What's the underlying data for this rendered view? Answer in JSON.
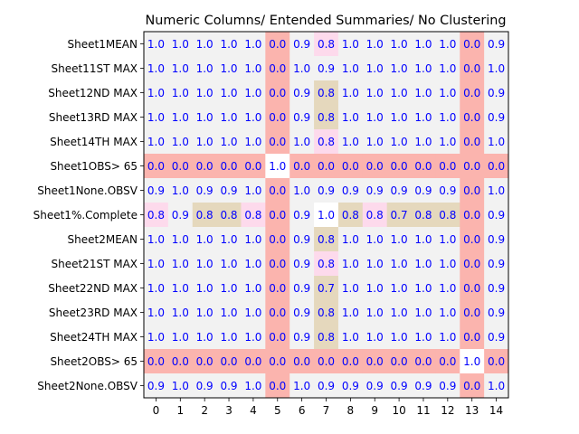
{
  "chart_data": {
    "type": "heatmap",
    "title": "Numeric Columns/ Entended Summaries/ No Clustering",
    "xlabel": "",
    "ylabel": "",
    "x_ticks": [
      "0",
      "1",
      "2",
      "3",
      "4",
      "5",
      "6",
      "7",
      "8",
      "9",
      "10",
      "11",
      "12",
      "13",
      "14"
    ],
    "y_labels": [
      "Sheet1MEAN",
      "Sheet11ST MAX",
      "Sheet12ND MAX",
      "Sheet13RD MAX",
      "Sheet14TH MAX",
      "Sheet1OBS> 65",
      "Sheet1None.OBSV",
      "Sheet1%.Complete",
      "Sheet2MEAN",
      "Sheet21ST MAX",
      "Sheet22ND MAX",
      "Sheet23RD MAX",
      "Sheet24TH MAX",
      "Sheet2OBS> 65",
      "Sheet2None.OBSV"
    ],
    "values": [
      [
        1.0,
        1.0,
        1.0,
        1.0,
        1.0,
        0.0,
        0.9,
        0.8,
        1.0,
        1.0,
        1.0,
        1.0,
        1.0,
        0.0,
        0.9
      ],
      [
        1.0,
        1.0,
        1.0,
        1.0,
        1.0,
        0.0,
        1.0,
        0.9,
        1.0,
        1.0,
        1.0,
        1.0,
        1.0,
        0.0,
        1.0
      ],
      [
        1.0,
        1.0,
        1.0,
        1.0,
        1.0,
        0.0,
        0.9,
        0.8,
        1.0,
        1.0,
        1.0,
        1.0,
        1.0,
        0.0,
        0.9
      ],
      [
        1.0,
        1.0,
        1.0,
        1.0,
        1.0,
        0.0,
        0.9,
        0.8,
        1.0,
        1.0,
        1.0,
        1.0,
        1.0,
        0.0,
        0.9
      ],
      [
        1.0,
        1.0,
        1.0,
        1.0,
        1.0,
        0.0,
        1.0,
        0.8,
        1.0,
        1.0,
        1.0,
        1.0,
        1.0,
        0.0,
        1.0
      ],
      [
        0.0,
        0.0,
        0.0,
        0.0,
        0.0,
        1.0,
        0.0,
        0.0,
        0.0,
        0.0,
        0.0,
        0.0,
        0.0,
        0.0,
        0.0
      ],
      [
        0.9,
        1.0,
        0.9,
        0.9,
        1.0,
        0.0,
        1.0,
        0.9,
        0.9,
        0.9,
        0.9,
        0.9,
        0.9,
        0.0,
        1.0
      ],
      [
        0.8,
        0.9,
        0.8,
        0.8,
        0.8,
        0.0,
        0.9,
        1.0,
        0.8,
        0.8,
        0.7,
        0.8,
        0.8,
        0.0,
        0.9
      ],
      [
        1.0,
        1.0,
        1.0,
        1.0,
        1.0,
        0.0,
        0.9,
        0.8,
        1.0,
        1.0,
        1.0,
        1.0,
        1.0,
        0.0,
        0.9
      ],
      [
        1.0,
        1.0,
        1.0,
        1.0,
        1.0,
        0.0,
        0.9,
        0.8,
        1.0,
        1.0,
        1.0,
        1.0,
        1.0,
        0.0,
        0.9
      ],
      [
        1.0,
        1.0,
        1.0,
        1.0,
        1.0,
        0.0,
        0.9,
        0.7,
        1.0,
        1.0,
        1.0,
        1.0,
        1.0,
        0.0,
        0.9
      ],
      [
        1.0,
        1.0,
        1.0,
        1.0,
        1.0,
        0.0,
        0.9,
        0.8,
        1.0,
        1.0,
        1.0,
        1.0,
        1.0,
        0.0,
        0.9
      ],
      [
        1.0,
        1.0,
        1.0,
        1.0,
        1.0,
        0.0,
        0.9,
        0.8,
        1.0,
        1.0,
        1.0,
        1.0,
        1.0,
        0.0,
        0.9
      ],
      [
        0.0,
        0.0,
        0.0,
        0.0,
        0.0,
        0.0,
        0.0,
        0.0,
        0.0,
        0.0,
        0.0,
        0.0,
        0.0,
        1.0,
        0.0
      ],
      [
        0.9,
        1.0,
        0.9,
        0.9,
        1.0,
        0.0,
        1.0,
        0.9,
        0.9,
        0.9,
        0.9,
        0.9,
        0.9,
        0.0,
        1.0
      ]
    ],
    "cell_colors": [
      [
        "#f2f2f2",
        "#f2f2f2",
        "#f2f2f2",
        "#f2f2f2",
        "#f2f2f2",
        "#fbb4ae",
        "#f2f2f2",
        "#fddaec",
        "#f2f2f2",
        "#f2f2f2",
        "#f2f2f2",
        "#f2f2f2",
        "#f2f2f2",
        "#fbb4ae",
        "#f2f2f2"
      ],
      [
        "#f2f2f2",
        "#f2f2f2",
        "#f2f2f2",
        "#f2f2f2",
        "#f2f2f2",
        "#fbb4ae",
        "#f2f2f2",
        "#f2f2f2",
        "#f2f2f2",
        "#f2f2f2",
        "#f2f2f2",
        "#f2f2f2",
        "#f2f2f2",
        "#fbb4ae",
        "#f2f2f2"
      ],
      [
        "#f2f2f2",
        "#f2f2f2",
        "#f2f2f2",
        "#f2f2f2",
        "#f2f2f2",
        "#fbb4ae",
        "#f2f2f2",
        "#e5d8bd",
        "#f2f2f2",
        "#f2f2f2",
        "#f2f2f2",
        "#f2f2f2",
        "#f2f2f2",
        "#fbb4ae",
        "#f2f2f2"
      ],
      [
        "#f2f2f2",
        "#f2f2f2",
        "#f2f2f2",
        "#f2f2f2",
        "#f2f2f2",
        "#fbb4ae",
        "#f2f2f2",
        "#e5d8bd",
        "#f2f2f2",
        "#f2f2f2",
        "#f2f2f2",
        "#f2f2f2",
        "#f2f2f2",
        "#fbb4ae",
        "#f2f2f2"
      ],
      [
        "#f2f2f2",
        "#f2f2f2",
        "#f2f2f2",
        "#f2f2f2",
        "#f2f2f2",
        "#fbb4ae",
        "#f2f2f2",
        "#fddaec",
        "#f2f2f2",
        "#f2f2f2",
        "#f2f2f2",
        "#f2f2f2",
        "#f2f2f2",
        "#fbb4ae",
        "#f2f2f2"
      ],
      [
        "#fbb4ae",
        "#fbb4ae",
        "#fbb4ae",
        "#fbb4ae",
        "#fbb4ae",
        "#ffffff",
        "#fbb4ae",
        "#fbb4ae",
        "#fbb4ae",
        "#fbb4ae",
        "#fbb4ae",
        "#fbb4ae",
        "#fbb4ae",
        "#fbb4ae",
        "#fbb4ae"
      ],
      [
        "#f2f2f2",
        "#f2f2f2",
        "#f2f2f2",
        "#f2f2f2",
        "#f2f2f2",
        "#fbb4ae",
        "#f2f2f2",
        "#f2f2f2",
        "#f2f2f2",
        "#f2f2f2",
        "#f2f2f2",
        "#f2f2f2",
        "#f2f2f2",
        "#fbb4ae",
        "#f2f2f2"
      ],
      [
        "#fddaec",
        "#f2f2f2",
        "#e5d8bd",
        "#e5d8bd",
        "#fddaec",
        "#fbb4ae",
        "#f2f2f2",
        "#ffffff",
        "#e5d8bd",
        "#fddaec",
        "#e5d8bd",
        "#e5d8bd",
        "#e5d8bd",
        "#fbb4ae",
        "#f2f2f2"
      ],
      [
        "#f2f2f2",
        "#f2f2f2",
        "#f2f2f2",
        "#f2f2f2",
        "#f2f2f2",
        "#fbb4ae",
        "#f2f2f2",
        "#e5d8bd",
        "#f2f2f2",
        "#f2f2f2",
        "#f2f2f2",
        "#f2f2f2",
        "#f2f2f2",
        "#fbb4ae",
        "#f2f2f2"
      ],
      [
        "#f2f2f2",
        "#f2f2f2",
        "#f2f2f2",
        "#f2f2f2",
        "#f2f2f2",
        "#fbb4ae",
        "#f2f2f2",
        "#fddaec",
        "#f2f2f2",
        "#f2f2f2",
        "#f2f2f2",
        "#f2f2f2",
        "#f2f2f2",
        "#fbb4ae",
        "#f2f2f2"
      ],
      [
        "#f2f2f2",
        "#f2f2f2",
        "#f2f2f2",
        "#f2f2f2",
        "#f2f2f2",
        "#fbb4ae",
        "#f2f2f2",
        "#e5d8bd",
        "#f2f2f2",
        "#f2f2f2",
        "#f2f2f2",
        "#f2f2f2",
        "#f2f2f2",
        "#fbb4ae",
        "#f2f2f2"
      ],
      [
        "#f2f2f2",
        "#f2f2f2",
        "#f2f2f2",
        "#f2f2f2",
        "#f2f2f2",
        "#fbb4ae",
        "#f2f2f2",
        "#e5d8bd",
        "#f2f2f2",
        "#f2f2f2",
        "#f2f2f2",
        "#f2f2f2",
        "#f2f2f2",
        "#fbb4ae",
        "#f2f2f2"
      ],
      [
        "#f2f2f2",
        "#f2f2f2",
        "#f2f2f2",
        "#f2f2f2",
        "#f2f2f2",
        "#fbb4ae",
        "#f2f2f2",
        "#e5d8bd",
        "#f2f2f2",
        "#f2f2f2",
        "#f2f2f2",
        "#f2f2f2",
        "#f2f2f2",
        "#fbb4ae",
        "#f2f2f2"
      ],
      [
        "#fbb4ae",
        "#fbb4ae",
        "#fbb4ae",
        "#fbb4ae",
        "#fbb4ae",
        "#fbb4ae",
        "#fbb4ae",
        "#fbb4ae",
        "#fbb4ae",
        "#fbb4ae",
        "#fbb4ae",
        "#fbb4ae",
        "#fbb4ae",
        "#ffffff",
        "#fbb4ae"
      ],
      [
        "#f2f2f2",
        "#f2f2f2",
        "#f2f2f2",
        "#f2f2f2",
        "#f2f2f2",
        "#fbb4ae",
        "#f2f2f2",
        "#f2f2f2",
        "#f2f2f2",
        "#f2f2f2",
        "#f2f2f2",
        "#f2f2f2",
        "#f2f2f2",
        "#fbb4ae",
        "#f2f2f2"
      ]
    ],
    "value_text_color": "#0000ff",
    "legend": "none",
    "grid": false
  }
}
